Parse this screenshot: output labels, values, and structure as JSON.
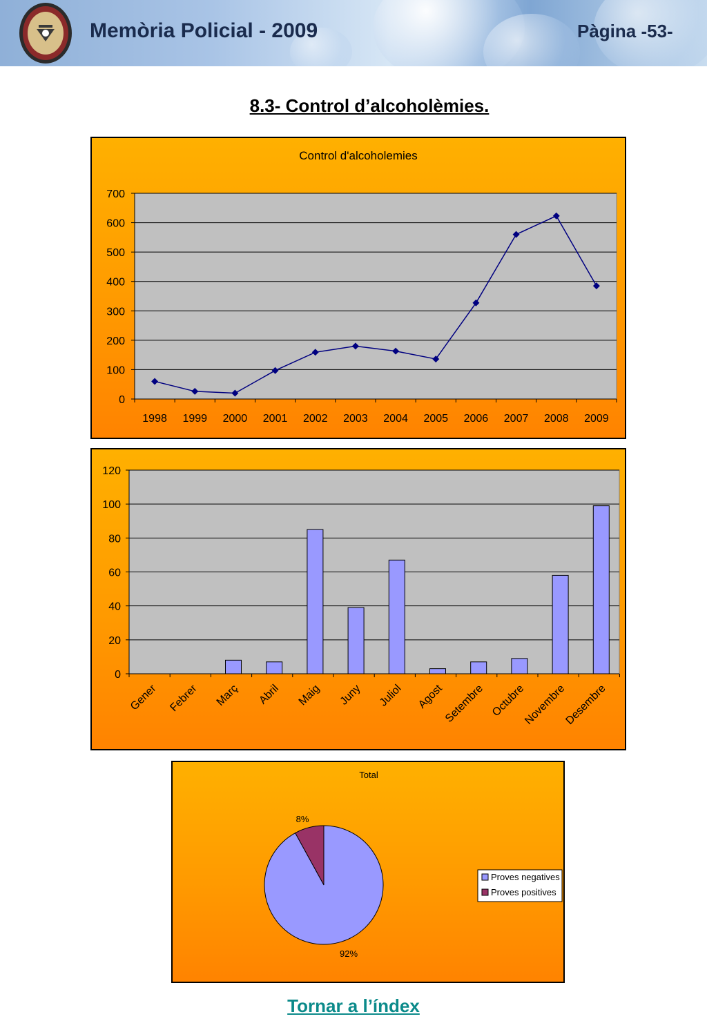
{
  "header": {
    "title": "Memòria Policial - 2009",
    "page": "Pàgina -53-"
  },
  "section_title": "8.3- Control d’alcoholèmies.",
  "footer": {
    "link_label": "Tornar a l’índex"
  },
  "colors": {
    "chart_bg": "#ff9a00",
    "plot_bg": "#c0c0c0",
    "line": "#000080",
    "bar_fill": "#9999ff",
    "pie_negative": "#9999ff",
    "pie_positive": "#993366"
  },
  "chart_data": [
    {
      "type": "line",
      "title": "Control d'alcoholemies",
      "x": [
        "1998",
        "1999",
        "2000",
        "2001",
        "2002",
        "2003",
        "2004",
        "2005",
        "2006",
        "2007",
        "2008",
        "2009"
      ],
      "series": [
        {
          "values": [
            60,
            26,
            20,
            97,
            159,
            180,
            163,
            136,
            327,
            560,
            623,
            385
          ]
        }
      ],
      "ylim": [
        0,
        700
      ],
      "yticks": [
        0,
        100,
        200,
        300,
        400,
        500,
        600,
        700
      ],
      "grid": true,
      "marker": "diamond"
    },
    {
      "type": "bar",
      "categories": [
        "Gener",
        "Febrer",
        "Març",
        "Abril",
        "Maig",
        "Juny",
        "Juliol",
        "Agost",
        "Setembre",
        "Octubre",
        "Novembre",
        "Desembre"
      ],
      "values": [
        0,
        0,
        8,
        7,
        85,
        39,
        67,
        3,
        7,
        9,
        58,
        99
      ],
      "ylim": [
        0,
        120
      ],
      "yticks": [
        0,
        20,
        40,
        60,
        80,
        100,
        120
      ],
      "grid": true
    },
    {
      "type": "pie",
      "title": "Total",
      "labels": [
        "Proves negatives",
        "Proves positives"
      ],
      "values": [
        92,
        8
      ],
      "data_labels": [
        "92%",
        "8%"
      ],
      "legend": "right"
    }
  ]
}
